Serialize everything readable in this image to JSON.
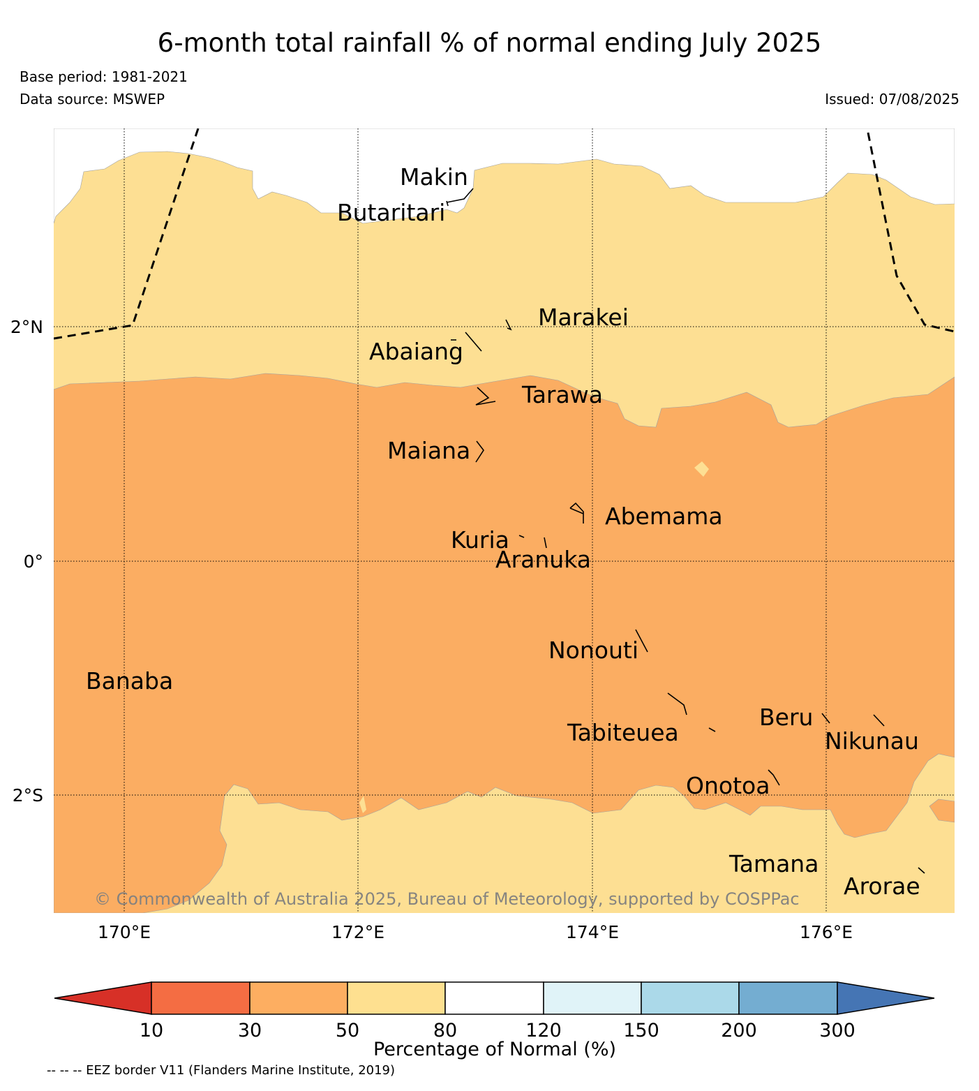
{
  "header": {
    "title": "6-month total rainfall % of normal ending July 2025",
    "base_period": "Base period: 1981-2021",
    "data_source": "Data source: MSWEP",
    "issued": "Issued: 07/08/2025"
  },
  "map": {
    "latitude_labels": [
      "2°N",
      "0°",
      "2°S"
    ],
    "longitude_labels": [
      "170°E",
      "172°E",
      "174°E",
      "176°E"
    ],
    "islands": [
      "Makin",
      "Butaritari",
      "Marakei",
      "Abaiang",
      "Tarawa",
      "Maiana",
      "Abemama",
      "Kuria",
      "Aranuka",
      "Nonouti",
      "Banaba",
      "Beru",
      "Tabiteuea",
      "Nikunau",
      "Onotoa",
      "Tamana",
      "Arorae"
    ],
    "copyright": "© Commonwealth of Australia 2025, Bureau of Meteorology, supported by COSPPac",
    "region_colors": {
      "50_to_80": "#fddf93",
      "30_to_50": "#fbad62"
    }
  },
  "legend": {
    "ticks": [
      "10",
      "30",
      "50",
      "80",
      "120",
      "150",
      "200",
      "300"
    ],
    "label": "Percentage of Normal (%)",
    "colors": [
      "#d73027",
      "#f46d43",
      "#fdae61",
      "#fee090",
      "#ffffff",
      "#e0f3f8",
      "#abd9e9",
      "#74add1",
      "#4575b4"
    ],
    "eez_note": "-- -- -- EEZ border V11 (Flanders Marine Institute, 2019)"
  }
}
